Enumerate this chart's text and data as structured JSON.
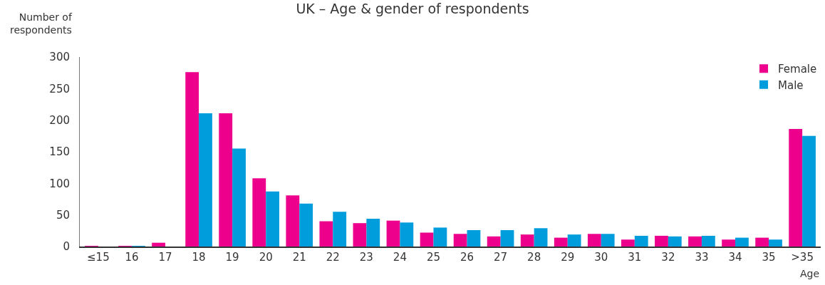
{
  "chart_data": {
    "type": "bar",
    "title": "UK – Age & gender of respondents",
    "xlabel": "Age",
    "ylabel": "Number of respondents",
    "categories": [
      "≤15",
      "16",
      "17",
      "18",
      "19",
      "20",
      "21",
      "22",
      "23",
      "24",
      "25",
      "26",
      "27",
      "28",
      "29",
      "30",
      "31",
      "32",
      "33",
      "34",
      "35",
      ">35"
    ],
    "series": [
      {
        "name": "Female",
        "color": "#ec008c",
        "values": [
          1,
          1,
          6,
          276,
          211,
          108,
          81,
          40,
          37,
          41,
          22,
          20,
          16,
          19,
          14,
          20,
          11,
          17,
          16,
          11,
          14,
          186
        ]
      },
      {
        "name": "Male",
        "color": "#009ddc",
        "values": [
          0,
          1,
          0,
          211,
          155,
          87,
          68,
          55,
          44,
          38,
          30,
          26,
          26,
          29,
          19,
          20,
          17,
          16,
          17,
          14,
          11,
          175
        ]
      }
    ],
    "ylim": [
      0,
      300
    ],
    "yticks": [
      0,
      50,
      100,
      150,
      200,
      250,
      300
    ],
    "grid": false,
    "legend": "top right"
  }
}
